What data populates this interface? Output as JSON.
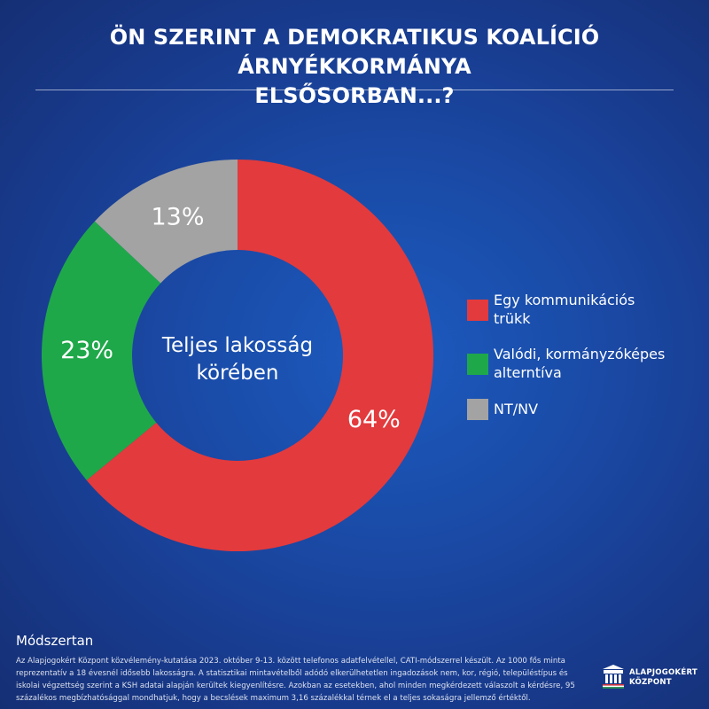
{
  "title": {
    "line1": "ÖN SZERINT A DEMOKRATIKUS KOALÍCIÓ ÁRNYÉKKORMÁNYA",
    "line2": "ELSŐSORBAN...?"
  },
  "chart_data": {
    "type": "pie",
    "title": "ÖN SZERINT A DEMOKRATIKUS KOALÍCIÓ ÁRNYÉKKORMÁNYA ELSŐSORBAN...?",
    "center_label": [
      "Teljes lakosság",
      "körében"
    ],
    "unit": "%",
    "legend_position": "right",
    "slices": [
      {
        "label": "Egy kommunikációs trükk",
        "value": 64,
        "display": "64%",
        "color": "#e33a3d"
      },
      {
        "label": "Valódi, kormányzóképes alterntíva",
        "value": 23,
        "display": "23%",
        "color": "#1fa84a"
      },
      {
        "label": "NT/NV",
        "value": 13,
        "display": "13%",
        "color": "#a3a3a3"
      }
    ]
  },
  "legend": {
    "items": [
      {
        "line1": "Egy kommunikációs",
        "line2": "trükk",
        "color": "#e33a3d"
      },
      {
        "line1": "Valódi, kormányzóképes",
        "line2": "alterntíva",
        "color": "#1fa84a"
      },
      {
        "line1": "NT/NV",
        "color": "#a3a3a3"
      }
    ]
  },
  "methodology": {
    "title": "Módszertan",
    "text": "Az Alapjogokért Központ közvélemény-kutatása 2023. október 9-13. között telefonos adatfelvétellel, CATI-módszerrel készült. Az 1000 fős minta reprezentatív a 18 évesnél idősebb lakosságra. A statisztikai mintavételből adódó elkerülhetetlen ingadozások nem, kor, régió, településtípus és iskolai végzettség szerint a KSH adatai alapján kerültek kiegyenlítésre. Azokban az esetekben, ahol minden megkérdezett válaszolt a kérdésre, 95 százalékos megbízhatósággal mondhatjuk, hogy a becslések maximum 3,16 százalékkal térnek el a teljes sokaságra jellemző értéktől."
  },
  "logo": {
    "line1": "ALAPJOGOKÉRT",
    "line2": "KÖZPONT",
    "icon": "alapjogokert-logo-icon"
  }
}
